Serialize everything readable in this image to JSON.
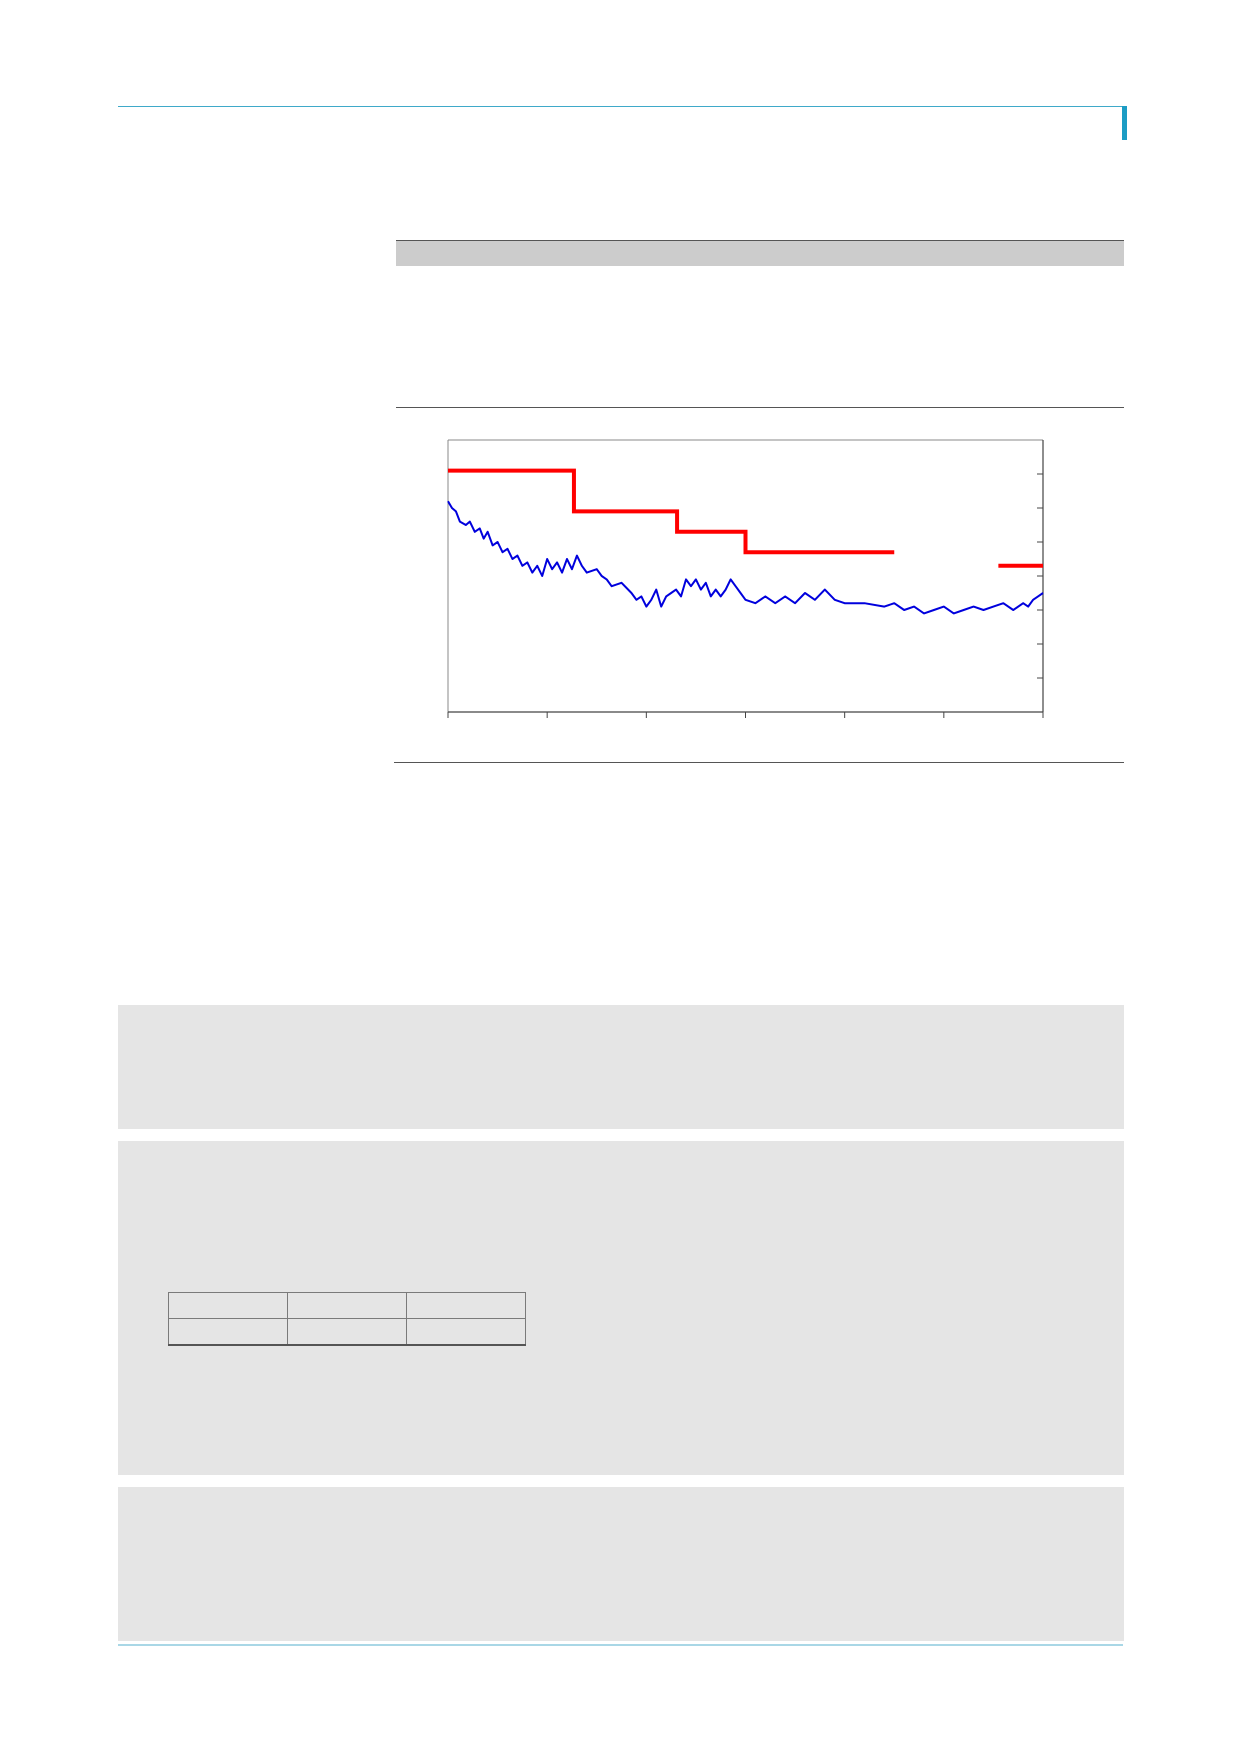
{
  "colors": {
    "accent_rule": "#3fa9c9",
    "accent_marker": "#1c9cc4",
    "section_header": "#cccccc",
    "panel_background": "#e5e5e5",
    "series_step": "#ff0000",
    "series_price": "#0000dd"
  },
  "chart_data": {
    "type": "line",
    "x_ticks": 6,
    "y_ticks": 7,
    "xlim": [
      0,
      6
    ],
    "ylim": [
      0,
      8
    ],
    "series": [
      {
        "color": "#ff0000",
        "style": "step",
        "segments": [
          [
            [
              0,
              7.1
            ],
            [
              1.27,
              7.1
            ],
            [
              1.27,
              5.9
            ],
            [
              2.31,
              5.9
            ],
            [
              2.31,
              5.3
            ],
            [
              3.0,
              5.3
            ],
            [
              3.0,
              4.7
            ],
            [
              4.5,
              4.7
            ]
          ],
          [
            [
              5.55,
              4.3
            ],
            [
              6.0,
              4.3
            ]
          ]
        ]
      },
      {
        "color": "#0000dd",
        "style": "line",
        "points": [
          [
            0.0,
            6.2
          ],
          [
            0.04,
            6.0
          ],
          [
            0.08,
            5.9
          ],
          [
            0.12,
            5.6
          ],
          [
            0.18,
            5.5
          ],
          [
            0.22,
            5.6
          ],
          [
            0.27,
            5.3
          ],
          [
            0.32,
            5.4
          ],
          [
            0.36,
            5.1
          ],
          [
            0.4,
            5.3
          ],
          [
            0.45,
            4.9
          ],
          [
            0.5,
            5.0
          ],
          [
            0.55,
            4.7
          ],
          [
            0.6,
            4.8
          ],
          [
            0.65,
            4.5
          ],
          [
            0.7,
            4.6
          ],
          [
            0.75,
            4.3
          ],
          [
            0.8,
            4.4
          ],
          [
            0.85,
            4.1
          ],
          [
            0.9,
            4.3
          ],
          [
            0.95,
            4.0
          ],
          [
            1.0,
            4.5
          ],
          [
            1.05,
            4.2
          ],
          [
            1.1,
            4.4
          ],
          [
            1.15,
            4.1
          ],
          [
            1.2,
            4.5
          ],
          [
            1.25,
            4.2
          ],
          [
            1.3,
            4.6
          ],
          [
            1.35,
            4.3
          ],
          [
            1.4,
            4.1
          ],
          [
            1.5,
            4.2
          ],
          [
            1.55,
            4.0
          ],
          [
            1.6,
            3.9
          ],
          [
            1.65,
            3.7
          ],
          [
            1.75,
            3.8
          ],
          [
            1.85,
            3.5
          ],
          [
            1.9,
            3.3
          ],
          [
            1.95,
            3.4
          ],
          [
            2.0,
            3.1
          ],
          [
            2.05,
            3.3
          ],
          [
            2.1,
            3.6
          ],
          [
            2.15,
            3.1
          ],
          [
            2.2,
            3.4
          ],
          [
            2.25,
            3.5
          ],
          [
            2.3,
            3.6
          ],
          [
            2.35,
            3.4
          ],
          [
            2.4,
            3.9
          ],
          [
            2.45,
            3.7
          ],
          [
            2.5,
            3.9
          ],
          [
            2.55,
            3.6
          ],
          [
            2.6,
            3.8
          ],
          [
            2.65,
            3.4
          ],
          [
            2.7,
            3.6
          ],
          [
            2.75,
            3.4
          ],
          [
            2.8,
            3.6
          ],
          [
            2.85,
            3.9
          ],
          [
            2.9,
            3.7
          ],
          [
            2.95,
            3.5
          ],
          [
            3.0,
            3.3
          ],
          [
            3.1,
            3.2
          ],
          [
            3.2,
            3.4
          ],
          [
            3.3,
            3.2
          ],
          [
            3.4,
            3.4
          ],
          [
            3.5,
            3.2
          ],
          [
            3.6,
            3.5
          ],
          [
            3.7,
            3.3
          ],
          [
            3.8,
            3.6
          ],
          [
            3.9,
            3.3
          ],
          [
            4.0,
            3.2
          ],
          [
            4.2,
            3.2
          ],
          [
            4.4,
            3.1
          ],
          [
            4.5,
            3.2
          ],
          [
            4.6,
            3.0
          ],
          [
            4.7,
            3.1
          ],
          [
            4.8,
            2.9
          ],
          [
            4.9,
            3.0
          ],
          [
            5.0,
            3.1
          ],
          [
            5.1,
            2.9
          ],
          [
            5.2,
            3.0
          ],
          [
            5.3,
            3.1
          ],
          [
            5.4,
            3.0
          ],
          [
            5.5,
            3.1
          ],
          [
            5.6,
            3.2
          ],
          [
            5.7,
            3.0
          ],
          [
            5.8,
            3.2
          ],
          [
            5.85,
            3.1
          ],
          [
            5.9,
            3.3
          ],
          [
            5.95,
            3.4
          ],
          [
            6.0,
            3.5
          ]
        ]
      }
    ]
  }
}
